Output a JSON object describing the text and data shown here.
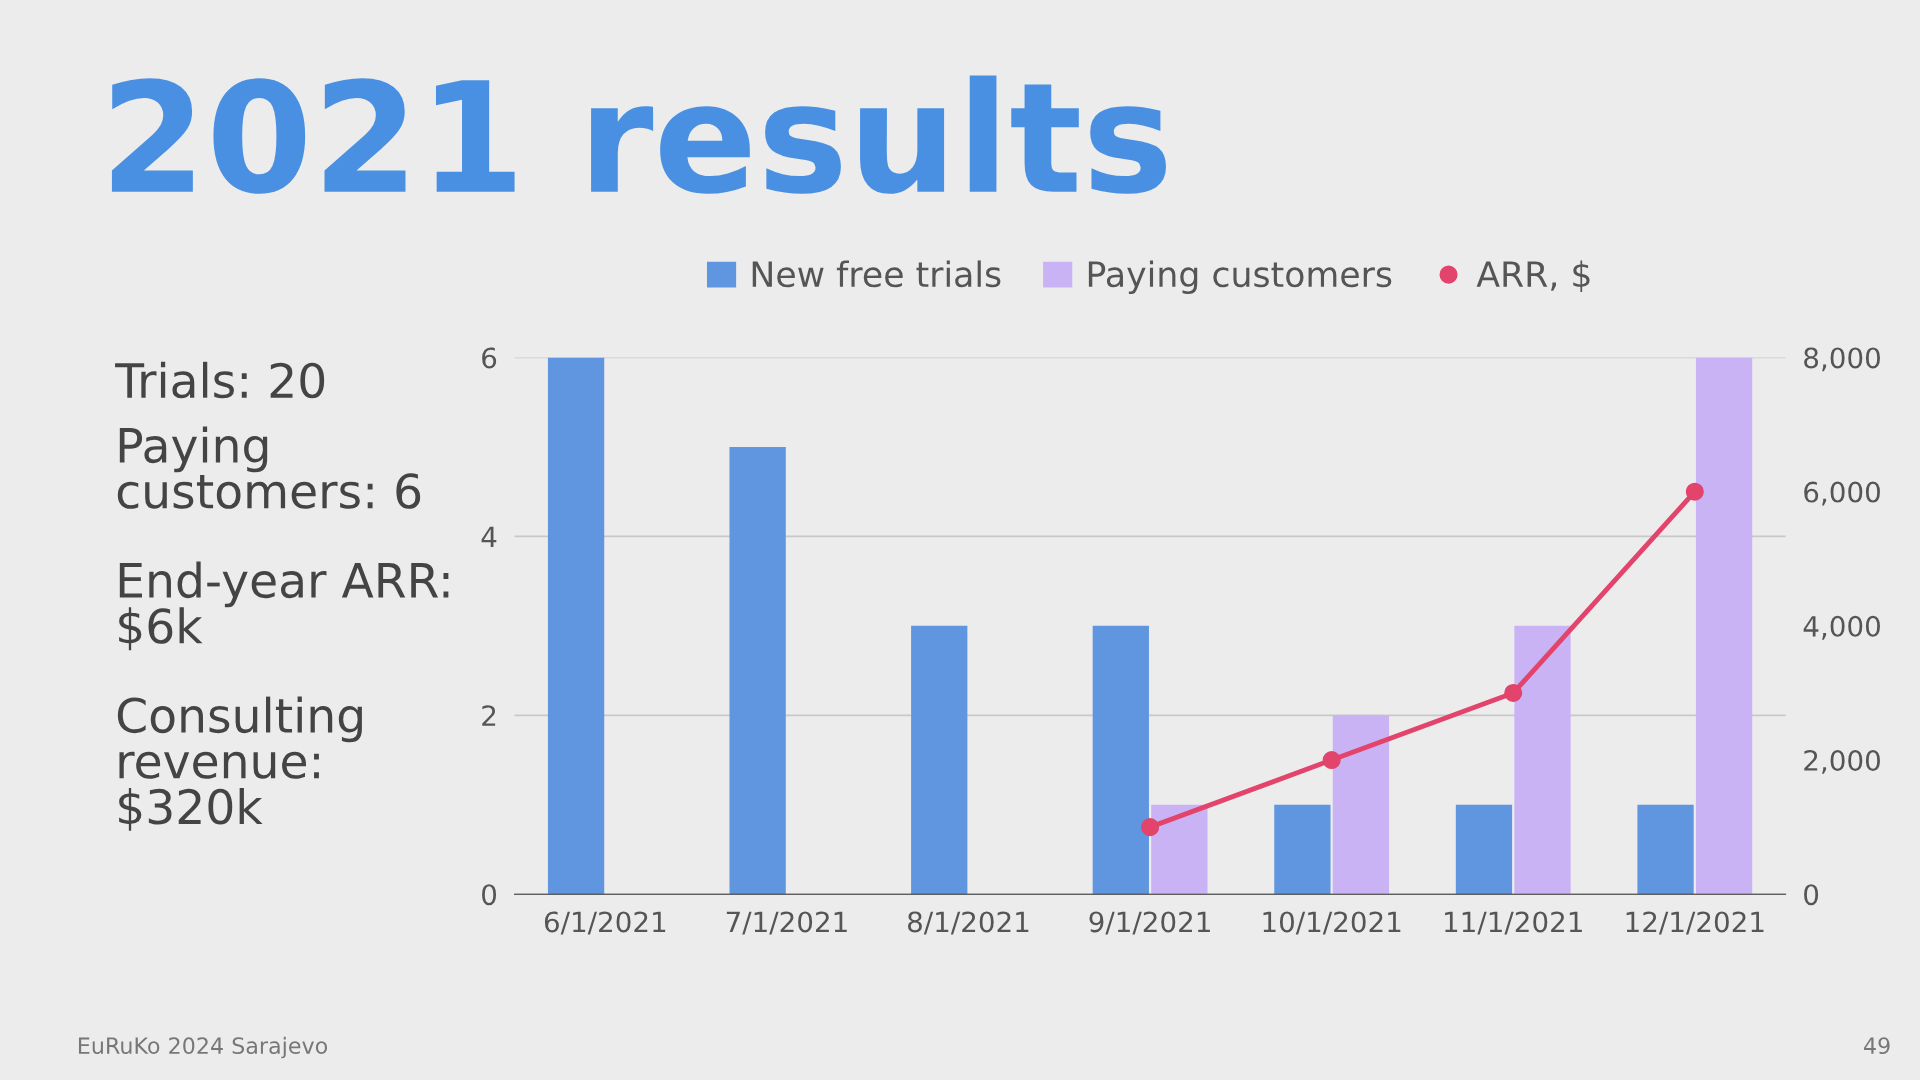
{
  "chart_data": {
    "type": "bar",
    "title": "2021 results",
    "categories": [
      "6/1/2021",
      "7/1/2021",
      "8/1/2021",
      "9/1/2021",
      "10/1/2021",
      "11/1/2021",
      "12/1/2021"
    ],
    "series": [
      {
        "name": "New free trials",
        "color": "#6096e0",
        "values": [
          6,
          5,
          3,
          3,
          1,
          1,
          1
        ]
      },
      {
        "name": "Paying customers",
        "color": "#c9b3f5",
        "values": [
          null,
          null,
          null,
          1,
          2,
          3,
          6
        ]
      },
      {
        "name": "ARR, $",
        "color": "#e2446c",
        "type": "line",
        "axis": "y2",
        "marker": "circle",
        "values": [
          null,
          null,
          null,
          1000,
          2000,
          3000,
          6000
        ]
      }
    ],
    "ylim": [
      0,
      6
    ],
    "yticks": [
      0,
      2,
      4,
      6
    ],
    "y2lim": [
      0,
      8000
    ],
    "y2ticks": [
      0,
      {
        "value": 2000,
        "label": "2,000"
      },
      {
        "value": 4000,
        "label": "4,000"
      },
      {
        "value": 6000,
        "label": "6,000"
      },
      {
        "value": 8000,
        "label": "8,000"
      }
    ],
    "grid": "y",
    "legend": "top",
    "annotations": [
      "Trials: 20",
      "Paying\ncustomers: 6",
      "End-year ARR:\n$6k",
      "Consulting\nrevenue:\n$320k",
      "EuRuKo 2024 Sarajevo",
      "49"
    ]
  }
}
